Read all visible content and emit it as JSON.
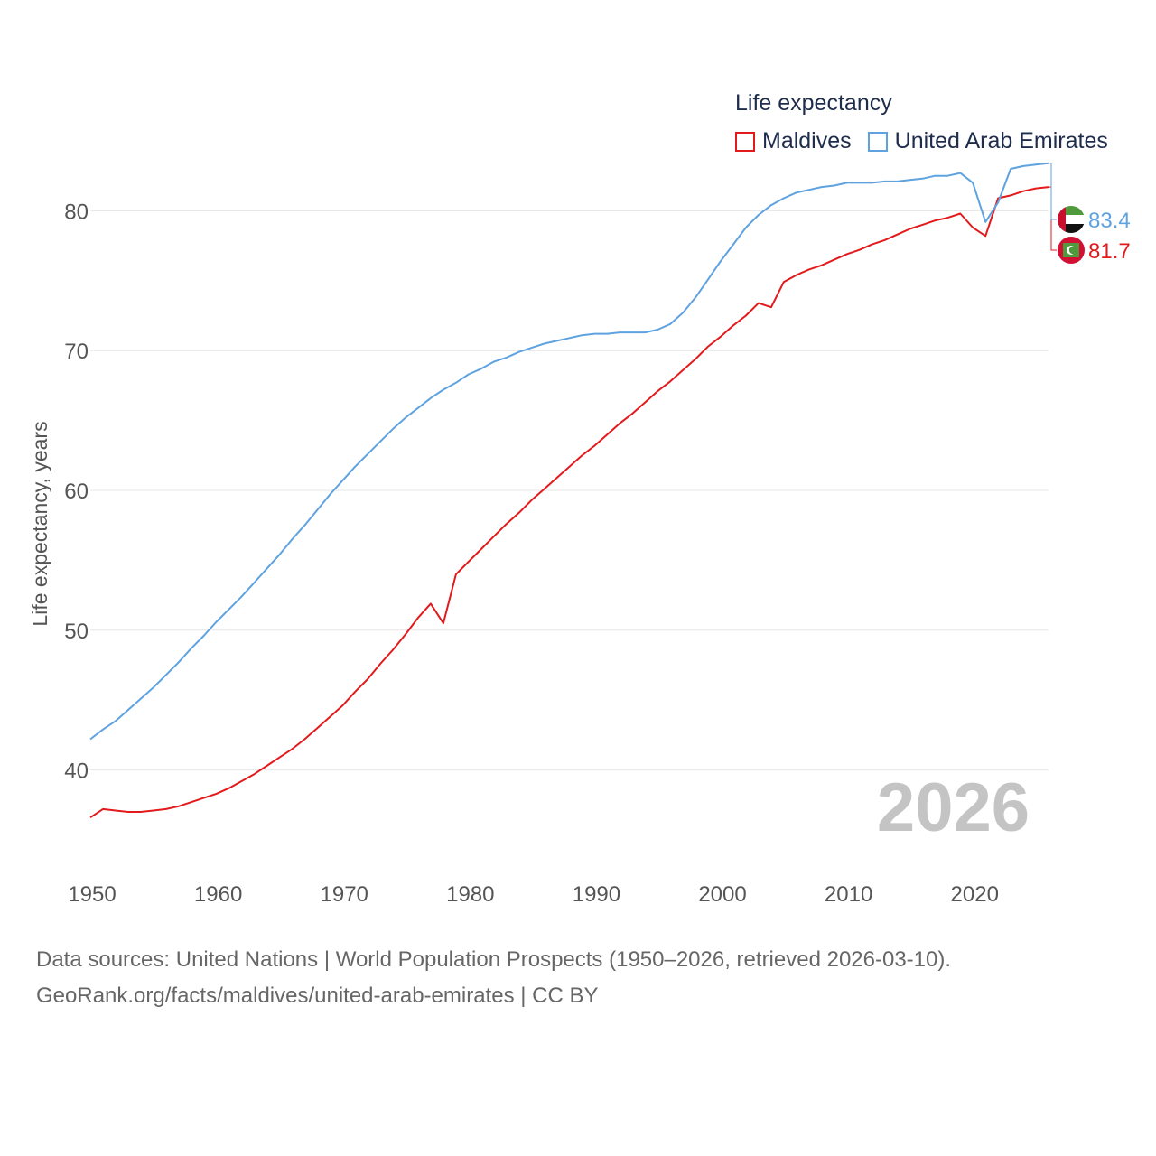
{
  "legend": {
    "title": "Life expectancy",
    "items": [
      {
        "label": "Maldives",
        "color": "#e31a1c"
      },
      {
        "label": "United Arab Emirates",
        "color": "#5fa2e0"
      }
    ]
  },
  "year_overlay": "2026",
  "footer": {
    "line1": "Data sources: United Nations | World Population Prospects (1950–2026, retrieved 2026-03-10).",
    "line2": "GeoRank.org/facts/maldives/united-arab-emirates | CC BY"
  },
  "chart_data": {
    "type": "line",
    "title": "Life expectancy",
    "xlabel": "",
    "ylabel": "Life expectancy, years",
    "xlim": [
      1950,
      2026
    ],
    "ylim": [
      35,
      85
    ],
    "x_ticks": [
      1950,
      1960,
      1970,
      1980,
      1990,
      2000,
      2010,
      2020
    ],
    "y_ticks": [
      40,
      50,
      60,
      70,
      80
    ],
    "grid": true,
    "legend_position": "top-right",
    "x": [
      1950,
      1951,
      1952,
      1953,
      1954,
      1955,
      1956,
      1957,
      1958,
      1959,
      1960,
      1961,
      1962,
      1963,
      1964,
      1965,
      1966,
      1967,
      1968,
      1969,
      1970,
      1971,
      1972,
      1973,
      1974,
      1975,
      1976,
      1977,
      1978,
      1979,
      1980,
      1981,
      1982,
      1983,
      1984,
      1985,
      1986,
      1987,
      1988,
      1989,
      1990,
      1991,
      1992,
      1993,
      1994,
      1995,
      1996,
      1997,
      1998,
      1999,
      2000,
      2001,
      2002,
      2003,
      2004,
      2005,
      2006,
      2007,
      2008,
      2009,
      2010,
      2011,
      2012,
      2013,
      2014,
      2015,
      2016,
      2017,
      2018,
      2019,
      2020,
      2021,
      2022,
      2023,
      2024,
      2025,
      2026
    ],
    "series": [
      {
        "name": "Maldives",
        "color": "#e31a1c",
        "end_label": "81.7",
        "values": [
          36.6,
          37.2,
          37.1,
          37.0,
          37.0,
          37.1,
          37.2,
          37.4,
          37.7,
          38.0,
          38.3,
          38.7,
          39.2,
          39.7,
          40.3,
          40.9,
          41.5,
          42.2,
          43.0,
          43.8,
          44.6,
          45.6,
          46.5,
          47.6,
          48.6,
          49.7,
          50.9,
          51.9,
          50.5,
          54.0,
          54.9,
          55.8,
          56.7,
          57.6,
          58.4,
          59.3,
          60.1,
          60.9,
          61.7,
          62.5,
          63.2,
          64.0,
          64.8,
          65.5,
          66.3,
          67.1,
          67.8,
          68.6,
          69.4,
          70.3,
          71.0,
          71.8,
          72.5,
          73.4,
          73.1,
          74.9,
          75.4,
          75.8,
          76.1,
          76.5,
          76.9,
          77.2,
          77.6,
          77.9,
          78.3,
          78.7,
          79.0,
          79.3,
          79.5,
          79.8,
          78.8,
          78.2,
          80.9,
          81.1,
          81.4,
          81.6,
          81.7
        ]
      },
      {
        "name": "United Arab Emirates",
        "color": "#5fa2e0",
        "end_label": "83.4",
        "values": [
          42.2,
          42.9,
          43.5,
          44.3,
          45.1,
          45.9,
          46.8,
          47.7,
          48.7,
          49.6,
          50.6,
          51.5,
          52.4,
          53.4,
          54.4,
          55.4,
          56.5,
          57.5,
          58.6,
          59.7,
          60.7,
          61.7,
          62.6,
          63.5,
          64.4,
          65.2,
          65.9,
          66.6,
          67.2,
          67.7,
          68.3,
          68.7,
          69.2,
          69.5,
          69.9,
          70.2,
          70.5,
          70.7,
          70.9,
          71.1,
          71.2,
          71.2,
          71.3,
          71.3,
          71.3,
          71.5,
          71.9,
          72.7,
          73.8,
          75.1,
          76.4,
          77.6,
          78.8,
          79.7,
          80.4,
          80.9,
          81.3,
          81.5,
          81.7,
          81.8,
          82.0,
          82.0,
          82.0,
          82.1,
          82.1,
          82.2,
          82.3,
          82.5,
          82.5,
          82.7,
          82.0,
          79.2,
          80.6,
          83.0,
          83.2,
          83.3,
          83.4
        ]
      }
    ]
  }
}
